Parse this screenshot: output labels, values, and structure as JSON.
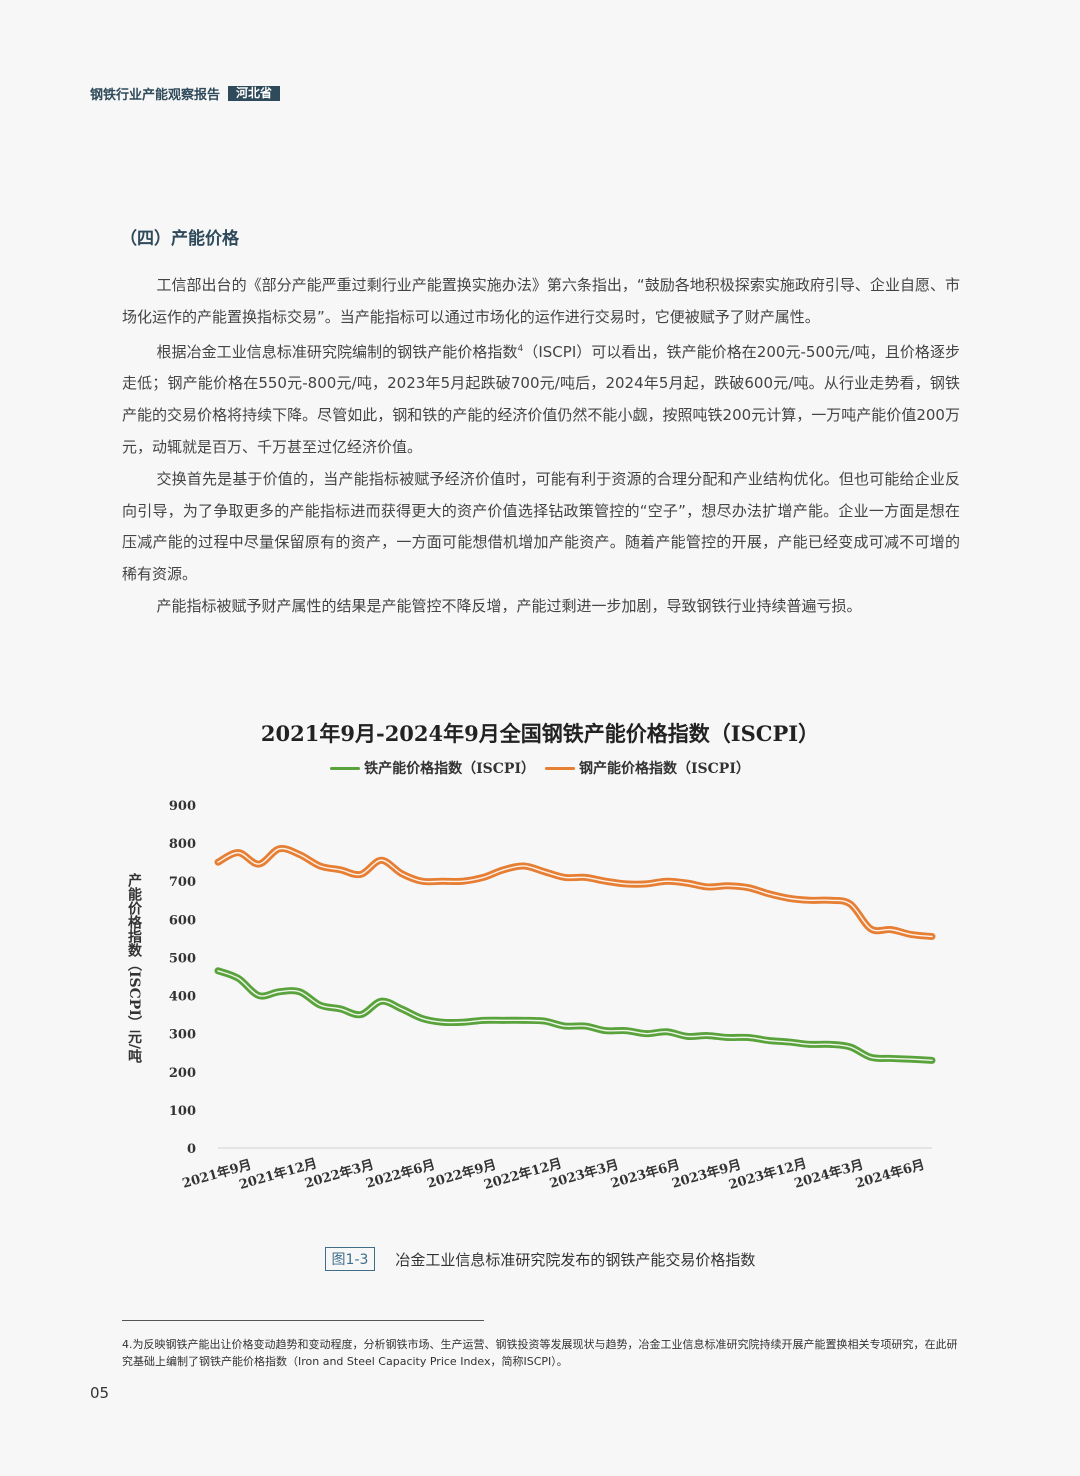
{
  "header": {
    "title": "钢铁行业产能观察报告",
    "badge": "河北省"
  },
  "section_title": "（四）产能价格",
  "paragraphs": [
    "工信部出台的《部分产能严重过剩行业产能置换实施办法》第六条指出，“鼓励各地积极探索实施政府引导、企业自愿、市场化运作的产能置换指标交易”。当产能指标可以通过市场化的运作进行交易时，它便被赋予了财产属性。",
    {
      "before": "根据冶金工业信息标准研究院编制的钢铁产能价格指数",
      "sup": "4",
      "after": "（ISCPI）可以看出，铁产能价格在200元-500元/吨，且价格逐步走低；钢产能价格在550元-800元/吨，2023年5月起跌破700元/吨后，2024年5月起，跌破600元/吨。从行业走势看，钢铁产能的交易价格将持续下降。尽管如此，钢和铁的产能的经济价值仍然不能小觑，按照吨铁200元计算，一万吨产能价值200万元，动辄就是百万、千万甚至过亿经济价值。"
    },
    "交换首先是基于价值的，当产能指标被赋予经济价值时，可能有利于资源的合理分配和产业结构优化。但也可能给企业反向引导，为了争取更多的产能指标进而获得更大的资产价值选择钻政策管控的“空子”，想尽办法扩增产能。企业一方面是想在压减产能的过程中尽量保留原有的资产，一方面可能想借机增加产能资产。随着产能管控的开展，产能已经变成可减不可增的稀有资源。",
    "产能指标被赋予财产属性的结果是产能管控不降反增，产能过剩进一步加剧，导致钢铁行业持续普遍亏损。"
  ],
  "chart_data": {
    "type": "line",
    "title": "2021年9月-2024年9月全国钢铁产能价格指数（ISCPI）",
    "ylabel": "产能价格指数（ISCPI）元/吨",
    "ylim": [
      0,
      900
    ],
    "yticks": [
      0,
      100,
      200,
      300,
      400,
      500,
      600,
      700,
      800,
      900
    ],
    "x_tick_labels": [
      "2021年9月",
      "2021年12月",
      "2022年3月",
      "2022年6月",
      "2022年9月",
      "2022年12月",
      "2023年3月",
      "2023年6月",
      "2023年9月",
      "2023年12月",
      "2024年3月",
      "2024年6月"
    ],
    "legend_position": "top",
    "grid": false,
    "series": [
      {
        "name": "铁产能价格指数（ISCPI）",
        "color": "#5aa33c",
        "values": [
          465,
          445,
          400,
          410,
          410,
          375,
          365,
          350,
          385,
          365,
          340,
          330,
          330,
          335,
          335,
          335,
          333,
          320,
          320,
          308,
          308,
          300,
          305,
          293,
          295,
          290,
          290,
          282,
          278,
          272,
          272,
          265,
          238,
          235,
          233,
          230
        ]
      },
      {
        "name": "钢产能价格指数（ISCPI）",
        "color": "#e67e33",
        "values": [
          750,
          775,
          745,
          785,
          770,
          740,
          730,
          718,
          755,
          720,
          700,
          700,
          700,
          710,
          730,
          740,
          725,
          710,
          710,
          700,
          693,
          693,
          700,
          695,
          685,
          688,
          683,
          667,
          655,
          650,
          650,
          640,
          575,
          573,
          560,
          555
        ]
      }
    ]
  },
  "caption": {
    "tag": "图1-3",
    "text": "冶金工业信息标准研究院发布的钢铁产能交易价格指数"
  },
  "footnote": "4.为反映钢铁产能出让价格变动趋势和变动程度，分析钢铁市场、生产运营、钢铁投资等发展现状与趋势，冶金工业信息标准研究院持续开展产能置换相关专项研究，在此研究基础上编制了钢铁产能价格指数（Iron and Steel Capacity Price Index，简称ISCPI）。",
  "page_number": "05"
}
